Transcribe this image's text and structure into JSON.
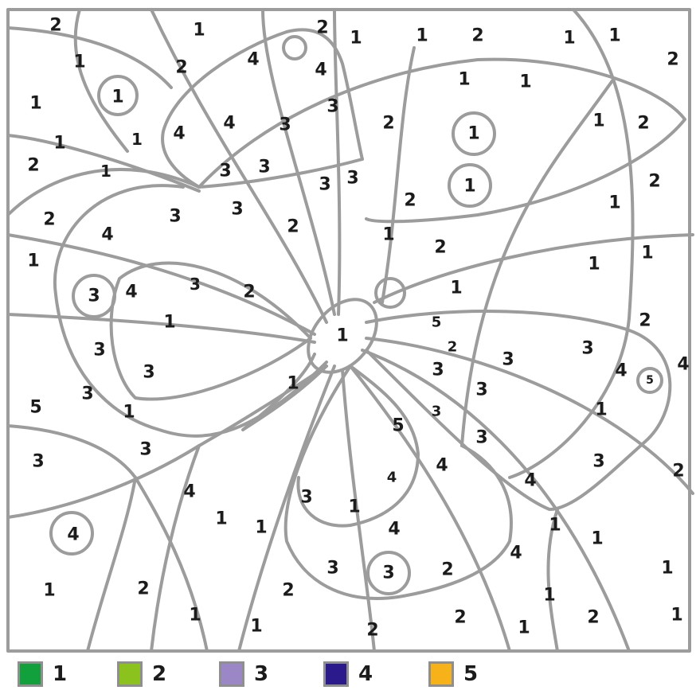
{
  "title": "",
  "legend": [
    {
      "number": "1",
      "color": "#12a03c"
    },
    {
      "number": "2",
      "color": "#8cc21e"
    },
    {
      "number": "3",
      "color": "#9b87c6"
    },
    {
      "number": "4",
      "color": "#2a1a8c"
    },
    {
      "number": "5",
      "color": "#f7b21a"
    }
  ],
  "region_numbers": [
    "2",
    "1",
    "2",
    "1",
    "2",
    "1",
    "1",
    "2",
    "2",
    "1",
    "2",
    "4",
    "4",
    "1",
    "1",
    "1",
    "1",
    "2",
    "1",
    "1",
    "4",
    "4",
    "3",
    "3",
    "2",
    "1",
    "1",
    "2",
    "1",
    "1",
    "3",
    "3",
    "3",
    "3",
    "1",
    "1",
    "2",
    "2",
    "1",
    "4",
    "3",
    "3",
    "2",
    "1",
    "2",
    "1",
    "1",
    "2",
    "4",
    "3",
    "2",
    "1",
    "1",
    "2",
    "4",
    "3",
    "3",
    "5",
    "1",
    "5",
    "3",
    "2",
    "3",
    "3",
    "3",
    "4",
    "5",
    "2",
    "4",
    "3",
    "3",
    "3",
    "5",
    "1",
    "1",
    "3",
    "3",
    "4",
    "1",
    "3",
    "3",
    "1",
    "4",
    "4",
    "4",
    "3",
    "4",
    "2",
    "1",
    "4",
    "3",
    "3",
    "2",
    "1",
    "4",
    "4",
    "2",
    "1",
    "1",
    "1",
    "2",
    "1",
    "2",
    "2",
    "1",
    "2",
    "1",
    "1",
    "2",
    "1",
    "1",
    "2",
    "2",
    "2",
    "2",
    "2"
  ]
}
